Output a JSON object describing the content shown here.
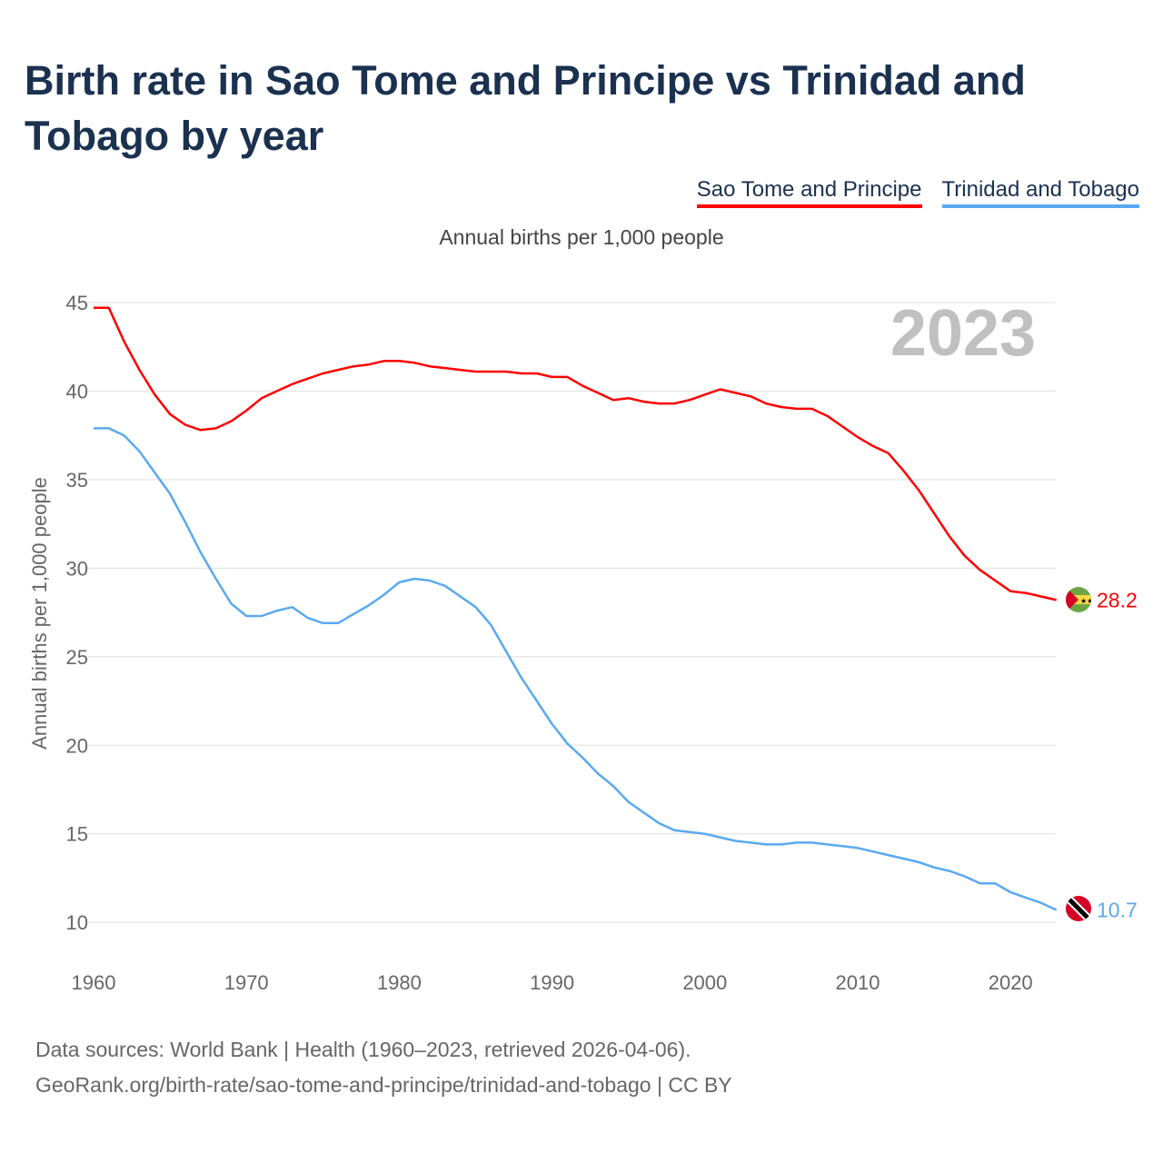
{
  "chart_data": {
    "type": "line",
    "title": "Birth rate in Sao Tome and Principe vs Trinidad and Tobago by year",
    "subtitle": "Annual births per 1,000 people",
    "ylabel": "Annual births per 1,000 people",
    "xlabel": "",
    "ylim": [
      10,
      45
    ],
    "xlim": [
      1960,
      2023
    ],
    "yticks": [
      "10",
      "15",
      "20",
      "25",
      "30",
      "35",
      "40",
      "45"
    ],
    "xticks": [
      "1960",
      "1970",
      "1980",
      "1990",
      "2000",
      "2010",
      "2020"
    ],
    "grid": true,
    "legend_position": "top-right",
    "year_label": "2023",
    "x_start": 1960,
    "series": [
      {
        "name": "Sao Tome and Principe",
        "color": "#ff0000",
        "end_label": "28.2",
        "values": [
          44.7,
          44.7,
          42.8,
          41.2,
          39.8,
          38.7,
          38.1,
          37.8,
          37.9,
          38.3,
          38.9,
          39.6,
          40.0,
          40.4,
          40.7,
          41.0,
          41.2,
          41.4,
          41.5,
          41.7,
          41.7,
          41.6,
          41.4,
          41.3,
          41.2,
          41.1,
          41.1,
          41.1,
          41.0,
          41.0,
          40.8,
          40.8,
          40.3,
          39.9,
          39.5,
          39.6,
          39.4,
          39.3,
          39.3,
          39.5,
          39.8,
          40.1,
          39.9,
          39.7,
          39.3,
          39.1,
          39.0,
          39.0,
          38.6,
          38.0,
          37.4,
          36.9,
          36.5,
          35.5,
          34.4,
          33.1,
          31.8,
          30.7,
          29.9,
          29.3,
          28.7,
          28.6,
          28.4,
          28.2
        ]
      },
      {
        "name": "Trinidad and Tobago",
        "color": "#5aa9f0",
        "end_label": "10.7",
        "values": [
          37.9,
          37.9,
          37.5,
          36.6,
          35.4,
          34.2,
          32.6,
          30.9,
          29.4,
          28.0,
          27.3,
          27.3,
          27.6,
          27.8,
          27.2,
          26.9,
          26.9,
          27.4,
          27.9,
          28.5,
          29.2,
          29.4,
          29.3,
          29.0,
          28.4,
          27.8,
          26.8,
          25.3,
          23.8,
          22.5,
          21.2,
          20.1,
          19.3,
          18.4,
          17.7,
          16.8,
          16.2,
          15.6,
          15.2,
          15.1,
          15.0,
          14.8,
          14.6,
          14.5,
          14.4,
          14.4,
          14.5,
          14.5,
          14.4,
          14.3,
          14.2,
          14.0,
          13.8,
          13.6,
          13.4,
          13.1,
          12.9,
          12.6,
          12.2,
          12.2,
          11.7,
          11.4,
          11.1,
          10.7
        ]
      }
    ]
  },
  "footer": {
    "line1": "Data sources: World Bank | Health (1960–2023, retrieved 2026-04-06).",
    "line2": "GeoRank.org/birth-rate/sao-tome-and-principe/trinidad-and-tobago | CC BY"
  }
}
